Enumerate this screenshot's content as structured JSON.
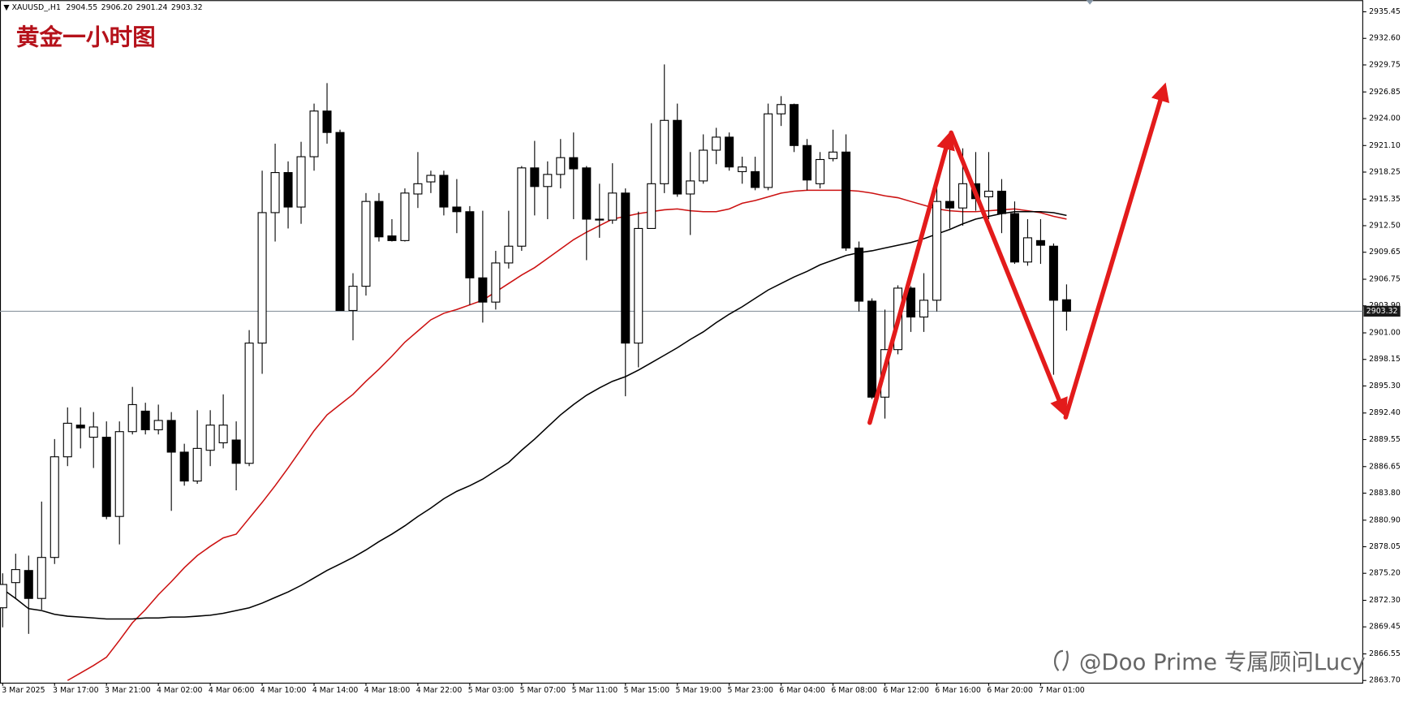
{
  "chart_data": {
    "type": "candlestick",
    "symbol": "XAUUSD_,H1",
    "header_values": [
      "2904.55",
      "2906.20",
      "2901.24",
      "2903.32"
    ],
    "title": "黄金一小时图",
    "watermark": "@Doo Prime 专属顾问Lucy",
    "categories": [
      "3 Mar 2025",
      null,
      null,
      null,
      "3 Mar 17:00",
      null,
      null,
      null,
      "3 Mar 21:00",
      null,
      null,
      null,
      "4 Mar 02:00",
      null,
      null,
      null,
      "4 Mar 06:00",
      null,
      null,
      null,
      "4 Mar 10:00",
      null,
      null,
      null,
      "4 Mar 14:00",
      null,
      null,
      null,
      "4 Mar 18:00",
      null,
      null,
      null,
      "4 Mar 22:00",
      null,
      null,
      null,
      "5 Mar 03:00",
      null,
      null,
      null,
      "5 Mar 07:00",
      null,
      null,
      null,
      "5 Mar 11:00",
      null,
      null,
      null,
      "5 Mar 15:00",
      null,
      null,
      null,
      "5 Mar 19:00",
      null,
      null,
      null,
      "5 Mar 23:00",
      null,
      null,
      null,
      "6 Mar 04:00",
      null,
      null,
      null,
      "6 Mar 08:00",
      null,
      null,
      null,
      "6 Mar 12:00",
      null,
      null,
      null,
      "6 Mar 16:00",
      null,
      null,
      null,
      "6 Mar 20:00",
      null,
      null,
      null,
      "7 Mar 01:00",
      null,
      null
    ],
    "open": [
      2871.5,
      2874.2,
      2875.5,
      2872.5,
      2876.9,
      2887.7,
      2891.1,
      2889.8,
      2889.8,
      2881.3,
      2890.4,
      2892.6,
      2890.6,
      2891.6,
      2888.2,
      2885.1,
      2888.4,
      2889.2,
      2889.5,
      2887.0,
      2899.9,
      2913.9,
      2918.2,
      2914.5,
      2919.9,
      2924.8,
      2922.5,
      2903.4,
      2906.0,
      2915.1,
      2911.4,
      2910.9,
      2915.9,
      2917.2,
      2917.9,
      2914.5,
      2914.0,
      2906.9,
      2904.3,
      2908.5,
      2910.3,
      2918.7,
      2916.7,
      2918.0,
      2919.8,
      2918.7,
      2913.2,
      2913.1,
      2916.0,
      2899.9,
      2912.2,
      2917.0,
      2923.8,
      2915.9,
      2917.3,
      2920.6,
      2922.0,
      2918.3,
      2918.3,
      2916.6,
      2924.5,
      2925.5,
      2921.1,
      2917.0,
      2919.7,
      2920.4,
      2910.1,
      2904.4,
      2894.1,
      2899.2,
      2905.8,
      2902.7,
      2904.5,
      2915.1,
      2914.4,
      2917.0,
      2915.6,
      2916.2,
      2913.8,
      2908.6,
      2910.9,
      2910.3,
      2904.55
    ],
    "high": [
      2875.2,
      2877.3,
      2877.1,
      2882.9,
      2889.6,
      2893.0,
      2893.0,
      2892.5,
      2891.5,
      2891.5,
      2895.2,
      2893.5,
      2893.3,
      2892.5,
      2889.1,
      2892.7,
      2892.7,
      2894.4,
      2891.5,
      2901.3,
      2918.4,
      2921.3,
      2919.4,
      2921.5,
      2925.6,
      2927.8,
      2922.8,
      2907.4,
      2916.0,
      2916.0,
      2913.2,
      2916.5,
      2920.4,
      2918.4,
      2918.4,
      2917.5,
      2914.6,
      2914.1,
      2909.8,
      2914.1,
      2918.9,
      2921.6,
      2919.4,
      2921.8,
      2922.5,
      2918.9,
      2917.0,
      2919.2,
      2916.5,
      2914.0,
      2923.5,
      2929.8,
      2925.6,
      2920.4,
      2922.3,
      2923.0,
      2922.5,
      2919.9,
      2919.9,
      2925.6,
      2926.4,
      2925.6,
      2921.8,
      2920.4,
      2922.8,
      2922.3,
      2910.8,
      2904.7,
      2903.5,
      2906.1,
      2906.0,
      2907.4,
      2918.0,
      2921.3,
      2920.8,
      2920.4,
      2920.4,
      2917.5,
      2915.1,
      2913.2,
      2913.2,
      2910.6,
      2906.2
    ],
    "low": [
      2869.4,
      2872.5,
      2868.7,
      2871.3,
      2876.2,
      2886.7,
      2888.6,
      2886.5,
      2881.0,
      2878.3,
      2890.1,
      2890.1,
      2890.1,
      2881.9,
      2884.6,
      2884.8,
      2886.7,
      2888.6,
      2884.1,
      2886.7,
      2896.6,
      2910.8,
      2912.2,
      2912.7,
      2918.4,
      2921.3,
      2903.4,
      2900.2,
      2905.0,
      2910.8,
      2910.8,
      2910.8,
      2914.4,
      2916.0,
      2913.6,
      2911.7,
      2904.0,
      2902.1,
      2903.5,
      2907.9,
      2909.8,
      2913.6,
      2913.2,
      2916.5,
      2913.2,
      2908.8,
      2911.2,
      2912.7,
      2894.2,
      2897.3,
      2912.2,
      2916.0,
      2915.6,
      2911.5,
      2917.0,
      2919.1,
      2918.4,
      2917.0,
      2916.3,
      2916.3,
      2923.2,
      2920.4,
      2916.3,
      2916.5,
      2919.4,
      2909.8,
      2903.3,
      2893.9,
      2891.8,
      2898.7,
      2901.1,
      2901.1,
      2903.3,
      2912.2,
      2912.5,
      2914.1,
      2913.2,
      2911.7,
      2908.4,
      2908.2,
      2908.4,
      2896.5,
      2901.24
    ],
    "close": [
      2874.0,
      2875.6,
      2872.5,
      2876.9,
      2887.7,
      2891.3,
      2890.8,
      2890.9,
      2881.3,
      2890.4,
      2893.3,
      2890.6,
      2891.6,
      2888.2,
      2885.1,
      2888.6,
      2891.1,
      2891.1,
      2887.0,
      2899.9,
      2913.9,
      2918.2,
      2914.5,
      2919.9,
      2924.8,
      2922.5,
      2903.4,
      2906.0,
      2915.1,
      2911.3,
      2910.9,
      2916.0,
      2917.0,
      2917.9,
      2914.5,
      2914.0,
      2906.9,
      2904.3,
      2908.5,
      2910.3,
      2918.7,
      2916.7,
      2918.0,
      2919.8,
      2918.6,
      2913.2,
      2913.2,
      2916.0,
      2899.9,
      2912.2,
      2917.0,
      2923.8,
      2915.9,
      2917.3,
      2920.6,
      2922.0,
      2918.8,
      2918.8,
      2916.6,
      2924.5,
      2925.5,
      2921.1,
      2917.4,
      2919.6,
      2920.4,
      2910.1,
      2904.4,
      2894.1,
      2899.2,
      2905.8,
      2902.7,
      2904.5,
      2915.1,
      2914.4,
      2917.0,
      2915.4,
      2916.2,
      2913.8,
      2908.6,
      2911.2,
      2910.4,
      2904.5,
      2903.32
    ],
    "up_color": "#ffffff",
    "down_color": "#000000",
    "series": [
      {
        "type": "line",
        "color": "#cc1111",
        "values": [
          null,
          null,
          null,
          null,
          null,
          2863.7,
          2864.5,
          2865.3,
          2866.2,
          2868.0,
          2869.9,
          2871.3,
          2872.9,
          2874.3,
          2875.8,
          2877.1,
          2878.1,
          2879.0,
          2879.4,
          2881.1,
          2882.8,
          2884.6,
          2886.5,
          2888.5,
          2890.5,
          2892.2,
          2893.3,
          2894.4,
          2895.8,
          2897.1,
          2898.5,
          2900.0,
          2901.2,
          2902.4,
          2903.1,
          2903.5,
          2904.0,
          2904.5,
          2905.4,
          2906.3,
          2907.2,
          2908.0,
          2909.0,
          2910.0,
          2911.0,
          2911.8,
          2912.5,
          2913.2,
          2913.5,
          2913.8,
          2914.0,
          2914.2,
          2914.3,
          2914.1,
          2914.0,
          2914.0,
          2914.3,
          2914.9,
          2915.2,
          2915.6,
          2916.0,
          2916.2,
          2916.3,
          2916.3,
          2916.3,
          2916.3,
          2916.2,
          2916.0,
          2915.7,
          2915.5,
          2915.1,
          2914.7,
          2914.3,
          2914.1,
          2914.0,
          2914.0,
          2914.1,
          2914.2,
          2914.3,
          2914.1,
          2913.9,
          2913.5,
          2913.2
        ]
      },
      {
        "type": "line",
        "color": "#000000",
        "values": [
          2873.5,
          2872.5,
          2871.4,
          2871.2,
          2870.8,
          2870.6,
          2870.5,
          2870.4,
          2870.3,
          2870.3,
          2870.3,
          2870.4,
          2870.4,
          2870.5,
          2870.5,
          2870.6,
          2870.7,
          2870.9,
          2871.2,
          2871.5,
          2872.0,
          2872.6,
          2873.2,
          2873.9,
          2874.7,
          2875.5,
          2876.2,
          2876.9,
          2877.7,
          2878.6,
          2879.4,
          2880.3,
          2881.3,
          2882.2,
          2883.2,
          2884.0,
          2884.6,
          2885.3,
          2886.2,
          2887.1,
          2888.4,
          2889.6,
          2890.9,
          2892.2,
          2893.3,
          2894.3,
          2895.1,
          2895.8,
          2896.3,
          2897.0,
          2897.8,
          2898.6,
          2899.4,
          2900.3,
          2901.1,
          2902.1,
          2903.0,
          2903.8,
          2904.7,
          2905.6,
          2906.3,
          2907.0,
          2907.6,
          2908.3,
          2908.8,
          2909.3,
          2909.6,
          2909.8,
          2910.1,
          2910.4,
          2910.7,
          2911.1,
          2911.6,
          2912.1,
          2912.7,
          2913.2,
          2913.5,
          2913.8,
          2914.0,
          2914.0,
          2914.0,
          2913.9,
          2913.6
        ]
      }
    ],
    "ylim": [
      2863.7,
      2935.45
    ],
    "yticks": [
      2935.45,
      {
        "value": 2932.6,
        "label": "2932.60"
      },
      2929.75,
      2926.85,
      {
        "value": 2924,
        "label": "2924.00"
      },
      {
        "value": 2921.1,
        "label": "2921.10"
      },
      2918.25,
      2915.35,
      {
        "value": 2912.5,
        "label": "2912.50"
      },
      2909.65,
      2906.75,
      {
        "value": 2903.9,
        "label": "2903.90"
      },
      {
        "value": 2901,
        "label": "2901.00"
      },
      2898.15,
      {
        "value": 2895.3,
        "label": "2895.30"
      },
      {
        "value": 2892.4,
        "label": "2892.40"
      },
      2889.55,
      2886.65,
      {
        "value": 2883.8,
        "label": "2883.80"
      },
      {
        "value": 2880.9,
        "label": "2880.90"
      },
      2878.05,
      {
        "value": 2875.2,
        "label": "2875.20"
      },
      {
        "value": 2872.3,
        "label": "2872.30"
      },
      2869.45,
      2866.55,
      {
        "value": 2863.7,
        "label": "2863.70"
      }
    ],
    "current_price": 2903.32,
    "grid": false
  }
}
